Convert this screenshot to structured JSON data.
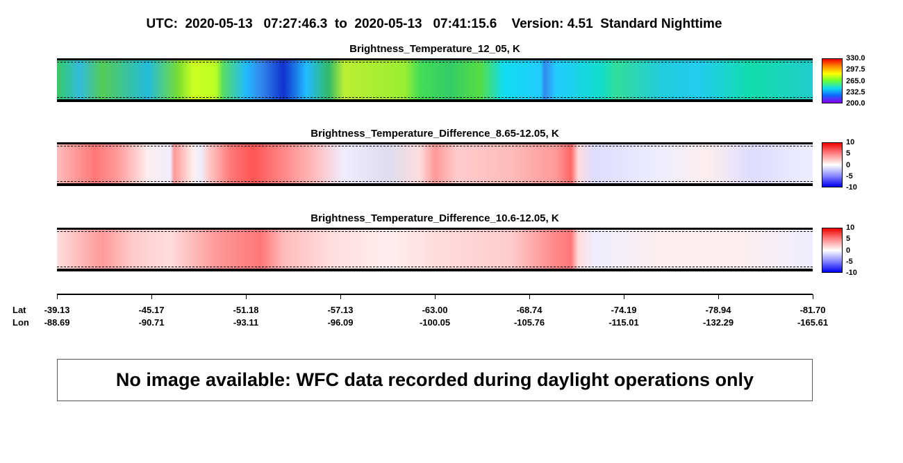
{
  "header": {
    "title": "UTC:  2020-05-13   07:27:46.3  to  2020-05-13   07:41:15.6    Version: 4.51  Standard Nighttime"
  },
  "panels": [
    {
      "title": "Brightness_Temperature_12_05, K",
      "colorbar": [
        "330.0",
        "297.5",
        "265.0",
        "232.5",
        "200.0"
      ]
    },
    {
      "title": "Brightness_Temperature_Difference_8.65-12.05, K",
      "colorbar": [
        "10",
        "5",
        "0",
        "-5",
        "-10"
      ]
    },
    {
      "title": "Brightness_Temperature_Difference_10.6-12.05, K",
      "colorbar": [
        "10",
        "5",
        "0",
        "-5",
        "-10"
      ]
    }
  ],
  "axis": {
    "lat_label": "Lat",
    "lon_label": "Lon",
    "lat": [
      "-39.13",
      "-45.17",
      "-51.18",
      "-57.13",
      "-63.00",
      "-68.74",
      "-74.19",
      "-78.94",
      "-81.70"
    ],
    "lon": [
      "-88.69",
      "-90.71",
      "-93.11",
      "-96.09",
      "-100.05",
      "-105.76",
      "-115.01",
      "-132.29",
      "-165.61"
    ]
  },
  "message": "No image available: WFC data recorded during daylight operations only"
}
